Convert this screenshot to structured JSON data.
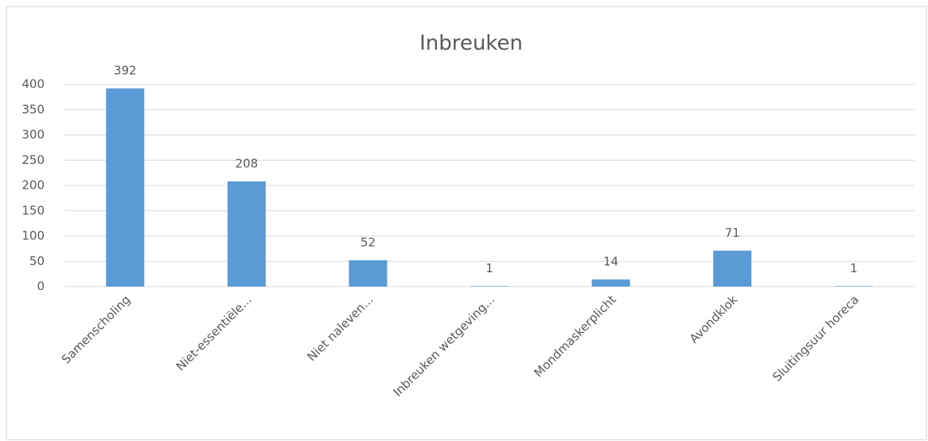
{
  "chart_data": {
    "type": "bar",
    "title": "Inbreuken",
    "categories": [
      "Samenscholing",
      "Niet-essentiële...",
      "Niet naleven...",
      "Inbreuken wetgeving...",
      "Mondmaskerplicht",
      "Avondklok",
      "Sluitingsuur horeca"
    ],
    "values": [
      392,
      208,
      52,
      1,
      14,
      71,
      1
    ],
    "color": "#5b9bd5",
    "ylim": [
      0,
      400
    ],
    "yticks": [
      0,
      50,
      100,
      150,
      200,
      250,
      300,
      350,
      400
    ],
    "grid": true
  }
}
